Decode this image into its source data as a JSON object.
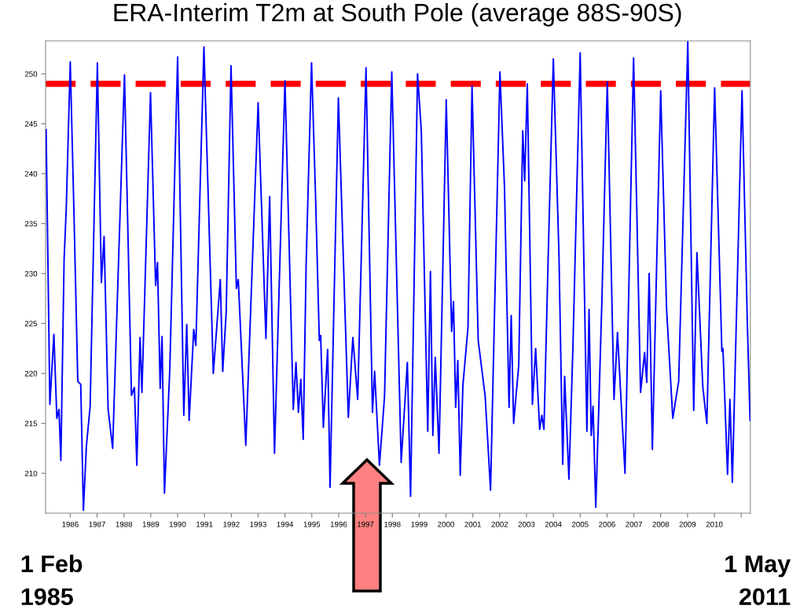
{
  "chart_data": {
    "type": "line",
    "title": "ERA-Interim T2m at South Pole (average 88S-90S)",
    "annotations": [
      "1 Feb\n1985",
      "1 May\n2011"
    ],
    "series": [
      {
        "color": "#0000ff",
        "x": [
          1985.1,
          1985.24,
          1985.39,
          1985.5,
          1985.58,
          1985.65,
          1985.77,
          1985.85,
          1986.0,
          1986.14,
          1986.28,
          1986.39,
          1986.49,
          1986.6,
          1986.74,
          1987.01,
          1987.16,
          1987.26,
          1987.41,
          1987.58,
          1987.76,
          1988.02,
          1988.28,
          1988.39,
          1988.48,
          1988.6,
          1988.67,
          1988.99,
          1989.18,
          1989.25,
          1989.35,
          1989.42,
          1989.51,
          1989.71,
          1990.0,
          1990.23,
          1990.34,
          1990.43,
          1990.6,
          1990.68,
          1990.98,
          1991.33,
          1991.59,
          1991.68,
          1991.81,
          1991.99,
          1992.19,
          1992.26,
          1992.54,
          1993.0,
          1993.29,
          1993.43,
          1993.61,
          1994.0,
          1994.31,
          1994.41,
          1994.5,
          1994.59,
          1994.68,
          1994.79,
          1994.99,
          1995.14,
          1995.28,
          1995.33,
          1995.43,
          1995.59,
          1995.68,
          1995.99,
          1996.36,
          1996.53,
          1996.71,
          1997.02,
          1997.26,
          1997.34,
          1997.52,
          1997.71,
          1997.98,
          1998.33,
          1998.56,
          1998.68,
          1998.94,
          1999.08,
          1999.32,
          1999.42,
          1999.51,
          1999.6,
          1999.74,
          2000.01,
          2000.21,
          2000.28,
          2000.36,
          2000.44,
          2000.53,
          2000.63,
          2000.82,
          2000.97,
          2001.2,
          2001.46,
          2001.66,
          2002.01,
          2002.18,
          2002.35,
          2002.43,
          2002.52,
          2002.71,
          2002.86,
          2002.93,
          2003.03,
          2003.22,
          2003.34,
          2003.49,
          2003.57,
          2003.65,
          2003.8,
          2004.0,
          2004.21,
          2004.35,
          2004.42,
          2004.58,
          2004.73,
          2005.0,
          2005.25,
          2005.33,
          2005.41,
          2005.48,
          2005.58,
          2005.69,
          2005.81,
          2006.01,
          2006.26,
          2006.39,
          2006.53,
          2006.67,
          2006.99,
          2007.25,
          2007.4,
          2007.48,
          2007.57,
          2007.69,
          2008.0,
          2008.22,
          2008.45,
          2008.67,
          2009.01,
          2009.23,
          2009.35,
          2009.57,
          2009.72,
          2010.01,
          2010.28,
          2010.32,
          2010.49,
          2010.58,
          2010.67,
          2011.03,
          2011.23,
          2011.33
        ],
        "values": [
          244.4,
          216.9,
          223.9,
          215.5,
          216.4,
          211.3,
          231.4,
          236.5,
          251.2,
          235.8,
          219.2,
          218.9,
          206.3,
          212.7,
          216.7,
          251.1,
          229.1,
          233.7,
          216.4,
          212.5,
          227.9,
          249.9,
          217.8,
          218.6,
          210.8,
          223.6,
          218.1,
          248.1,
          228.8,
          231.1,
          218.5,
          223.7,
          208.0,
          220.5,
          251.7,
          215.8,
          224.9,
          215.3,
          224.4,
          222.8,
          252.7,
          220.0,
          229.4,
          220.2,
          226.1,
          250.8,
          228.5,
          229.4,
          212.8,
          247.1,
          223.5,
          237.7,
          212.0,
          249.3,
          216.4,
          221.1,
          216.1,
          219.4,
          213.4,
          231.1,
          251.1,
          237.7,
          223.3,
          223.8,
          214.6,
          222.4,
          208.6,
          247.6,
          215.6,
          223.6,
          217.4,
          250.6,
          216.1,
          220.2,
          210.8,
          217.7,
          250.2,
          211.1,
          221.1,
          207.7,
          250.0,
          244.3,
          214.2,
          230.2,
          213.8,
          221.6,
          212.0,
          247.4,
          224.2,
          227.2,
          216.6,
          221.3,
          209.8,
          218.8,
          224.6,
          248.8,
          223.3,
          217.7,
          208.3,
          250.2,
          238.6,
          216.6,
          225.8,
          215.0,
          220.8,
          244.3,
          239.3,
          249.0,
          216.9,
          222.5,
          214.4,
          215.8,
          214.4,
          230.8,
          251.5,
          231.8,
          210.9,
          219.7,
          209.4,
          222.7,
          252.1,
          214.2,
          226.4,
          213.8,
          216.7,
          206.6,
          216.3,
          227.4,
          249.2,
          217.4,
          224.1,
          216.9,
          210.0,
          251.6,
          218.1,
          222.1,
          219.1,
          230.0,
          212.4,
          248.3,
          226.4,
          215.5,
          219.2,
          253.2,
          216.3,
          232.1,
          218.6,
          215.0,
          248.6,
          222.2,
          222.5,
          209.9,
          217.4,
          209.1,
          248.3,
          224.9,
          215.3
        ]
      }
    ],
    "xlim": [
      1985.08,
      2011.34
    ],
    "xticks": [
      1986,
      1987,
      1988,
      1989,
      1990,
      1991,
      1992,
      1993,
      1994,
      1995,
      1996,
      1997,
      1998,
      1999,
      2000,
      2001,
      2002,
      2003,
      2004,
      2005,
      2006,
      2007,
      2008,
      2009,
      2010,
      {
        "value": 2011,
        "label": null
      }
    ],
    "ylim": [
      206,
      253.3
    ],
    "yticks": [
      210,
      215,
      220,
      225,
      230,
      235,
      240,
      245,
      250
    ],
    "ref_lines": [
      {
        "axis": "y",
        "value": 249,
        "color": "#ff0000",
        "line_style": "dashed"
      }
    ],
    "grid": false,
    "legend": false,
    "marker": "none",
    "line_style": "solid"
  }
}
